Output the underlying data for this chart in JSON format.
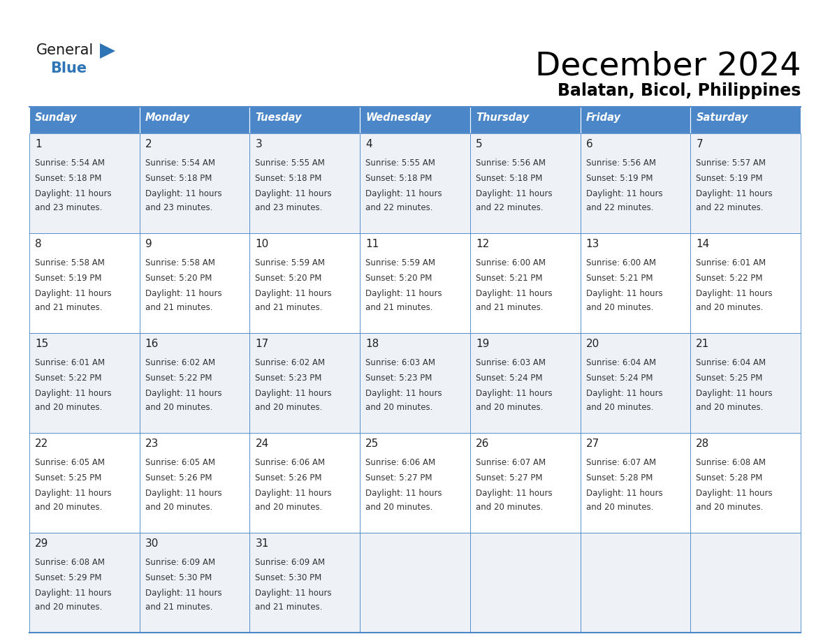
{
  "title": "December 2024",
  "subtitle": "Balatan, Bicol, Philippines",
  "days_of_week": [
    "Sunday",
    "Monday",
    "Tuesday",
    "Wednesday",
    "Thursday",
    "Friday",
    "Saturday"
  ],
  "header_bg": "#4a86c8",
  "header_text": "#ffffff",
  "row_bg_even": "#eef2f7",
  "row_bg_odd": "#ffffff",
  "border_color": "#4a86c8",
  "text_color": "#333333",
  "calendar_data": [
    [
      {
        "day": 1,
        "sunrise": "5:54 AM",
        "sunset": "5:18 PM",
        "daylight": "11 hours and 23 minutes."
      },
      {
        "day": 2,
        "sunrise": "5:54 AM",
        "sunset": "5:18 PM",
        "daylight": "11 hours and 23 minutes."
      },
      {
        "day": 3,
        "sunrise": "5:55 AM",
        "sunset": "5:18 PM",
        "daylight": "11 hours and 23 minutes."
      },
      {
        "day": 4,
        "sunrise": "5:55 AM",
        "sunset": "5:18 PM",
        "daylight": "11 hours and 22 minutes."
      },
      {
        "day": 5,
        "sunrise": "5:56 AM",
        "sunset": "5:18 PM",
        "daylight": "11 hours and 22 minutes."
      },
      {
        "day": 6,
        "sunrise": "5:56 AM",
        "sunset": "5:19 PM",
        "daylight": "11 hours and 22 minutes."
      },
      {
        "day": 7,
        "sunrise": "5:57 AM",
        "sunset": "5:19 PM",
        "daylight": "11 hours and 22 minutes."
      }
    ],
    [
      {
        "day": 8,
        "sunrise": "5:58 AM",
        "sunset": "5:19 PM",
        "daylight": "11 hours and 21 minutes."
      },
      {
        "day": 9,
        "sunrise": "5:58 AM",
        "sunset": "5:20 PM",
        "daylight": "11 hours and 21 minutes."
      },
      {
        "day": 10,
        "sunrise": "5:59 AM",
        "sunset": "5:20 PM",
        "daylight": "11 hours and 21 minutes."
      },
      {
        "day": 11,
        "sunrise": "5:59 AM",
        "sunset": "5:20 PM",
        "daylight": "11 hours and 21 minutes."
      },
      {
        "day": 12,
        "sunrise": "6:00 AM",
        "sunset": "5:21 PM",
        "daylight": "11 hours and 21 minutes."
      },
      {
        "day": 13,
        "sunrise": "6:00 AM",
        "sunset": "5:21 PM",
        "daylight": "11 hours and 20 minutes."
      },
      {
        "day": 14,
        "sunrise": "6:01 AM",
        "sunset": "5:22 PM",
        "daylight": "11 hours and 20 minutes."
      }
    ],
    [
      {
        "day": 15,
        "sunrise": "6:01 AM",
        "sunset": "5:22 PM",
        "daylight": "11 hours and 20 minutes."
      },
      {
        "day": 16,
        "sunrise": "6:02 AM",
        "sunset": "5:22 PM",
        "daylight": "11 hours and 20 minutes."
      },
      {
        "day": 17,
        "sunrise": "6:02 AM",
        "sunset": "5:23 PM",
        "daylight": "11 hours and 20 minutes."
      },
      {
        "day": 18,
        "sunrise": "6:03 AM",
        "sunset": "5:23 PM",
        "daylight": "11 hours and 20 minutes."
      },
      {
        "day": 19,
        "sunrise": "6:03 AM",
        "sunset": "5:24 PM",
        "daylight": "11 hours and 20 minutes."
      },
      {
        "day": 20,
        "sunrise": "6:04 AM",
        "sunset": "5:24 PM",
        "daylight": "11 hours and 20 minutes."
      },
      {
        "day": 21,
        "sunrise": "6:04 AM",
        "sunset": "5:25 PM",
        "daylight": "11 hours and 20 minutes."
      }
    ],
    [
      {
        "day": 22,
        "sunrise": "6:05 AM",
        "sunset": "5:25 PM",
        "daylight": "11 hours and 20 minutes."
      },
      {
        "day": 23,
        "sunrise": "6:05 AM",
        "sunset": "5:26 PM",
        "daylight": "11 hours and 20 minutes."
      },
      {
        "day": 24,
        "sunrise": "6:06 AM",
        "sunset": "5:26 PM",
        "daylight": "11 hours and 20 minutes."
      },
      {
        "day": 25,
        "sunrise": "6:06 AM",
        "sunset": "5:27 PM",
        "daylight": "11 hours and 20 minutes."
      },
      {
        "day": 26,
        "sunrise": "6:07 AM",
        "sunset": "5:27 PM",
        "daylight": "11 hours and 20 minutes."
      },
      {
        "day": 27,
        "sunrise": "6:07 AM",
        "sunset": "5:28 PM",
        "daylight": "11 hours and 20 minutes."
      },
      {
        "day": 28,
        "sunrise": "6:08 AM",
        "sunset": "5:28 PM",
        "daylight": "11 hours and 20 minutes."
      }
    ],
    [
      {
        "day": 29,
        "sunrise": "6:08 AM",
        "sunset": "5:29 PM",
        "daylight": "11 hours and 20 minutes."
      },
      {
        "day": 30,
        "sunrise": "6:09 AM",
        "sunset": "5:30 PM",
        "daylight": "11 hours and 21 minutes."
      },
      {
        "day": 31,
        "sunrise": "6:09 AM",
        "sunset": "5:30 PM",
        "daylight": "11 hours and 21 minutes."
      },
      null,
      null,
      null,
      null
    ]
  ],
  "logo_general_color": "#1a1a1a",
  "logo_blue_color": "#2e75b6",
  "logo_triangle_color": "#2e75b6"
}
